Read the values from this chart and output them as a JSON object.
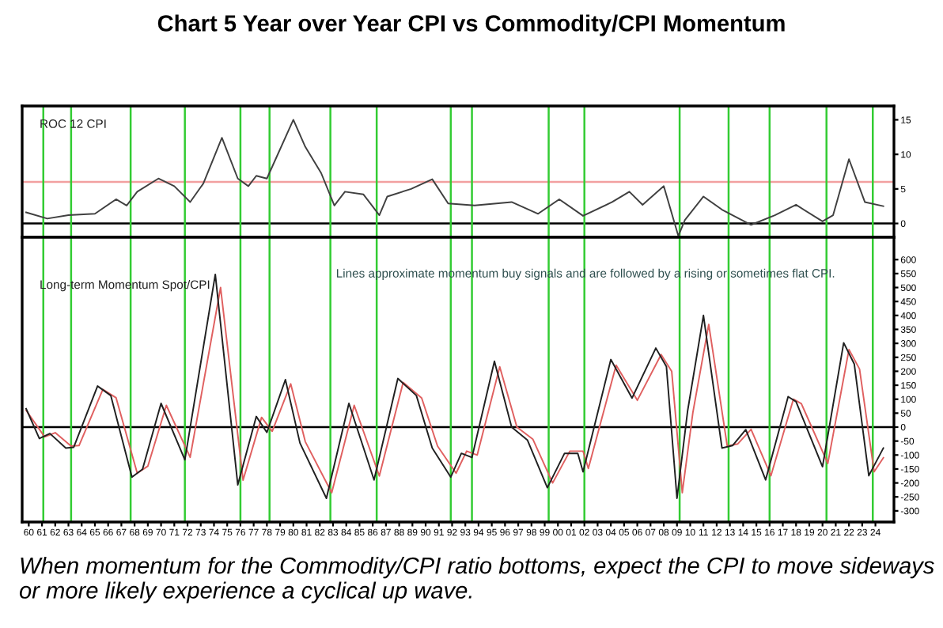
{
  "chart_data": [
    {
      "type": "line",
      "title": "Chart 5 Year over Year CPI vs Commodity/CPI Momentum",
      "xlim": [
        1959.5,
        2025.4
      ],
      "ylim": [
        -2,
        17
      ],
      "yticks": [
        0,
        5,
        10,
        15
      ],
      "tick_labels": "y",
      "grid": false,
      "legend": false,
      "series": [
        {
          "name": "ROC 12 CPI",
          "color": "#404040",
          "x": [
            1959.8,
            1961.4,
            1963.0,
            1965.0,
            1966.6,
            1967.4,
            1968.2,
            1969.8,
            1971.0,
            1972.2,
            1973.2,
            1974.6,
            1975.8,
            1976.6,
            1977.2,
            1978.0,
            1980.0,
            1980.9,
            1982.1,
            1983.1,
            1983.9,
            1985.3,
            1986.5,
            1987.1,
            1988.9,
            1990.5,
            1991.7,
            1993.7,
            1996.5,
            1998.5,
            2000.1,
            2001.9,
            2004.1,
            2005.4,
            2006.4,
            2008.0,
            2009.1,
            2009.6,
            2011.0,
            2012.4,
            2014.6,
            2016.4,
            2018.0,
            2020.0,
            2020.8,
            2022.0,
            2023.2,
            2024.6
          ],
          "values": [
            1.6,
            0.7,
            1.2,
            1.4,
            3.5,
            2.6,
            4.6,
            6.5,
            5.4,
            3.1,
            5.8,
            12.4,
            6.5,
            5.4,
            6.9,
            6.5,
            15.0,
            11.1,
            7.3,
            2.6,
            4.6,
            4.2,
            1.2,
            3.9,
            5.0,
            6.4,
            2.9,
            2.6,
            3.1,
            1.4,
            3.5,
            1.1,
            3.1,
            4.6,
            2.7,
            5.4,
            -1.8,
            0.5,
            3.9,
            2.0,
            -0.2,
            1.2,
            2.7,
            0.3,
            1.2,
            9.3,
            3.1,
            2.5
          ]
        }
      ],
      "ref_lines": [
        {
          "axis": "y",
          "value": 6,
          "color": "#f2a0a0"
        },
        {
          "axis": "y",
          "value": 0,
          "color": "#000000"
        },
        {
          "axis": "x",
          "value": 1961.1,
          "color": "#33cc33"
        },
        {
          "axis": "x",
          "value": 1963.2,
          "color": "#33cc33"
        },
        {
          "axis": "x",
          "value": 1967.7,
          "color": "#33cc33"
        },
        {
          "axis": "x",
          "value": 1971.8,
          "color": "#33cc33"
        },
        {
          "axis": "x",
          "value": 1976.0,
          "color": "#33cc33"
        },
        {
          "axis": "x",
          "value": 1978.2,
          "color": "#33cc33"
        },
        {
          "axis": "x",
          "value": 1982.8,
          "color": "#33cc33"
        },
        {
          "axis": "x",
          "value": 1986.3,
          "color": "#33cc33"
        },
        {
          "axis": "x",
          "value": 1991.9,
          "color": "#33cc33"
        },
        {
          "axis": "x",
          "value": 1993.5,
          "color": "#33cc33"
        },
        {
          "axis": "x",
          "value": 1999.3,
          "color": "#33cc33"
        },
        {
          "axis": "x",
          "value": 2002.0,
          "color": "#33cc33"
        },
        {
          "axis": "x",
          "value": 2009.2,
          "color": "#33cc33"
        },
        {
          "axis": "x",
          "value": 2012.9,
          "color": "#33cc33"
        },
        {
          "axis": "x",
          "value": 2016.0,
          "color": "#33cc33"
        },
        {
          "axis": "x",
          "value": 2020.3,
          "color": "#33cc33"
        },
        {
          "axis": "x",
          "value": 2023.8,
          "color": "#33cc33"
        }
      ]
    },
    {
      "type": "line",
      "xlim": [
        1959.5,
        2025.4
      ],
      "ylim": [
        -340,
        680
      ],
      "yticks": [
        -300,
        -250,
        -200,
        -150,
        -100,
        -50,
        0,
        50,
        100,
        150,
        200,
        250,
        300,
        350,
        400,
        450,
        500,
        550,
        600
      ],
      "grid": false,
      "legend": false,
      "xticks": [
        {
          "value": 1960,
          "label": "60"
        },
        {
          "value": 1961,
          "label": "61"
        },
        {
          "value": 1962,
          "label": "62"
        },
        {
          "value": 1963,
          "label": "63"
        },
        {
          "value": 1964,
          "label": "64"
        },
        {
          "value": 1965,
          "label": "65"
        },
        {
          "value": 1966,
          "label": "66"
        },
        {
          "value": 1967,
          "label": "67"
        },
        {
          "value": 1968,
          "label": "68"
        },
        {
          "value": 1969,
          "label": "69"
        },
        {
          "value": 1970,
          "label": "70"
        },
        {
          "value": 1971,
          "label": "71"
        },
        {
          "value": 1972,
          "label": "72"
        },
        {
          "value": 1973,
          "label": "73"
        },
        {
          "value": 1974,
          "label": "74"
        },
        {
          "value": 1975,
          "label": "75"
        },
        {
          "value": 1976,
          "label": "76"
        },
        {
          "value": 1977,
          "label": "77"
        },
        {
          "value": 1978,
          "label": "78"
        },
        {
          "value": 1979,
          "label": "79"
        },
        {
          "value": 1980,
          "label": "80"
        },
        {
          "value": 1981,
          "label": "81"
        },
        {
          "value": 1982,
          "label": "82"
        },
        {
          "value": 1983,
          "label": "83"
        },
        {
          "value": 1984,
          "label": "84"
        },
        {
          "value": 1985,
          "label": "85"
        },
        {
          "value": 1986,
          "label": "86"
        },
        {
          "value": 1987,
          "label": "87"
        },
        {
          "value": 1988,
          "label": "88"
        },
        {
          "value": 1989,
          "label": "89"
        },
        {
          "value": 1990,
          "label": "90"
        },
        {
          "value": 1991,
          "label": "91"
        },
        {
          "value": 1992,
          "label": "92"
        },
        {
          "value": 1993,
          "label": "93"
        },
        {
          "value": 1994,
          "label": "94"
        },
        {
          "value": 1995,
          "label": "95"
        },
        {
          "value": 1996,
          "label": "96"
        },
        {
          "value": 1997,
          "label": "97"
        },
        {
          "value": 1998,
          "label": "98"
        },
        {
          "value": 1999,
          "label": "99"
        },
        {
          "value": 2000,
          "label": "00"
        },
        {
          "value": 2001,
          "label": "01"
        },
        {
          "value": 2002,
          "label": "02"
        },
        {
          "value": 2003,
          "label": "03"
        },
        {
          "value": 2004,
          "label": "04"
        },
        {
          "value": 2005,
          "label": "05"
        },
        {
          "value": 2006,
          "label": "06"
        },
        {
          "value": 2007,
          "label": "07"
        },
        {
          "value": 2008,
          "label": "08"
        },
        {
          "value": 2009,
          "label": "09"
        },
        {
          "value": 2010,
          "label": "10"
        },
        {
          "value": 2011,
          "label": "11"
        },
        {
          "value": 2012,
          "label": "12"
        },
        {
          "value": 2013,
          "label": "13"
        },
        {
          "value": 2014,
          "label": "14"
        },
        {
          "value": 2015,
          "label": "15"
        },
        {
          "value": 2016,
          "label": "16"
        },
        {
          "value": 2017,
          "label": "17"
        },
        {
          "value": 2018,
          "label": "18"
        },
        {
          "value": 2019,
          "label": "19"
        },
        {
          "value": 2020,
          "label": "20"
        },
        {
          "value": 2021,
          "label": "21"
        },
        {
          "value": 2022,
          "label": "22"
        },
        {
          "value": 2023,
          "label": "23"
        },
        {
          "value": 2024,
          "label": "24"
        }
      ],
      "series": [
        {
          "name": "Long-term Momentum Spot/CPI",
          "color": "#202020",
          "x": [
            1959.8,
            1960.8,
            1961.6,
            1962.8,
            1963.4,
            1965.2,
            1966.2,
            1967.8,
            1968.6,
            1970.0,
            1971.8,
            1974.1,
            1975.8,
            1977.2,
            1978.0,
            1979.4,
            1980.5,
            1982.5,
            1984.2,
            1986.1,
            1987.9,
            1989.3,
            1990.5,
            1991.9,
            1992.7,
            1993.5,
            1995.2,
            1996.5,
            1997.7,
            1999.2,
            2000.5,
            2001.5,
            2001.9,
            2004.0,
            2005.6,
            2007.4,
            2008.2,
            2009.0,
            2009.8,
            2011.0,
            2012.4,
            2013.2,
            2014.2,
            2015.7,
            2017.4,
            2018.0,
            2020.0,
            2021.6,
            2022.4,
            2023.5,
            2024.6
          ],
          "values": [
            66,
            -41,
            -23,
            -75,
            -72,
            147,
            113,
            -179,
            -151,
            85,
            -117,
            547,
            -207,
            38,
            -19,
            170,
            -57,
            -255,
            85,
            -189,
            174,
            113,
            -75,
            -179,
            -94,
            -109,
            236,
            0,
            -47,
            -217,
            -94,
            -94,
            -160,
            242,
            104,
            283,
            217,
            -255,
            57,
            400,
            -75,
            -66,
            -9,
            -189,
            109,
            91,
            -142,
            302,
            226,
            -174,
            -75
          ]
        },
        {
          "color": "#e06060",
          "x": [
            1959.8,
            1961.2,
            1962.0,
            1963.2,
            1963.8,
            1965.6,
            1966.6,
            1968.2,
            1969.0,
            1970.4,
            1972.2,
            1974.5,
            1976.2,
            1977.6,
            1978.4,
            1979.8,
            1980.9,
            1982.9,
            1984.6,
            1986.5,
            1988.3,
            1989.7,
            1990.9,
            1992.3,
            1993.1,
            1993.9,
            1995.6,
            1996.9,
            1998.1,
            1999.6,
            2000.9,
            2001.9,
            2002.3,
            2004.4,
            2006.0,
            2007.8,
            2008.6,
            2009.4,
            2010.2,
            2011.4,
            2012.8,
            2013.6,
            2014.6,
            2016.1,
            2017.8,
            2018.4,
            2020.4,
            2022.0,
            2022.8,
            2023.9,
            2024.6
          ],
          "values": [
            60,
            -35,
            -20,
            -68,
            -66,
            135,
            105,
            -165,
            -140,
            78,
            -108,
            500,
            -190,
            35,
            -15,
            155,
            -52,
            -235,
            78,
            -175,
            160,
            104,
            -68,
            -165,
            -86,
            -100,
            216,
            0,
            -43,
            -200,
            -86,
            -86,
            -148,
            222,
            96,
            260,
            200,
            -235,
            52,
            368,
            -68,
            -60,
            -8,
            -174,
            100,
            84,
            -130,
            278,
            208,
            -160,
            -110
          ]
        }
      ],
      "ref_lines": [
        {
          "axis": "y",
          "value": 0,
          "color": "#000000"
        },
        {
          "axis": "x",
          "value": 1961.1,
          "color": "#33cc33"
        },
        {
          "axis": "x",
          "value": 1963.2,
          "color": "#33cc33"
        },
        {
          "axis": "x",
          "value": 1967.7,
          "color": "#33cc33"
        },
        {
          "axis": "x",
          "value": 1971.8,
          "color": "#33cc33"
        },
        {
          "axis": "x",
          "value": 1976.0,
          "color": "#33cc33"
        },
        {
          "axis": "x",
          "value": 1978.2,
          "color": "#33cc33"
        },
        {
          "axis": "x",
          "value": 1982.8,
          "color": "#33cc33"
        },
        {
          "axis": "x",
          "value": 1986.3,
          "color": "#33cc33"
        },
        {
          "axis": "x",
          "value": 1991.9,
          "color": "#33cc33"
        },
        {
          "axis": "x",
          "value": 1993.5,
          "color": "#33cc33"
        },
        {
          "axis": "x",
          "value": 1999.3,
          "color": "#33cc33"
        },
        {
          "axis": "x",
          "value": 2002.0,
          "color": "#33cc33"
        },
        {
          "axis": "x",
          "value": 2009.2,
          "color": "#33cc33"
        },
        {
          "axis": "x",
          "value": 2012.9,
          "color": "#33cc33"
        },
        {
          "axis": "x",
          "value": 2016.0,
          "color": "#33cc33"
        },
        {
          "axis": "x",
          "value": 2020.3,
          "color": "#33cc33"
        },
        {
          "axis": "x",
          "value": 2023.8,
          "color": "#33cc33"
        }
      ],
      "annotations": [
        "Lines approximate momentum buy signals and are followed by a rising or sometimes flat CPI.",
        "When momentum for the Commodity/CPI ratio bottoms, expect the CPI to move sideways or more likely experience a cyclical up wave."
      ]
    }
  ]
}
